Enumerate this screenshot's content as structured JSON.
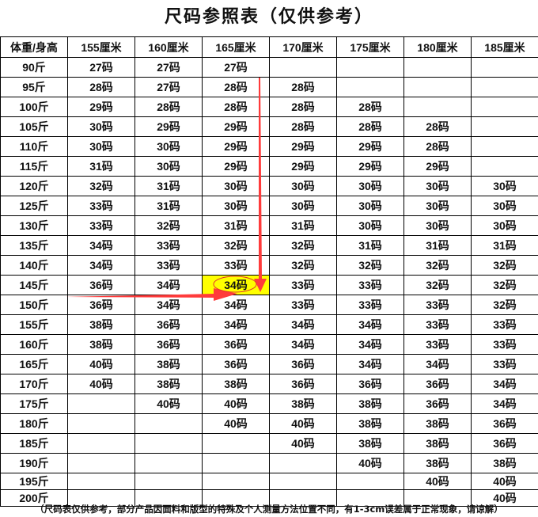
{
  "title": "尺码参照表（仅供参考）",
  "header": [
    "体重/身高",
    "155厘米",
    "160厘米",
    "165厘米",
    "170厘米",
    "175厘米",
    "180厘米",
    "185厘米"
  ],
  "rows": [
    [
      "90斤",
      "27码",
      "27码",
      "27码",
      "",
      "",
      "",
      ""
    ],
    [
      "95斤",
      "28码",
      "27码",
      "28码",
      "28码",
      "",
      "",
      ""
    ],
    [
      "100斤",
      "29码",
      "28码",
      "28码",
      "28码",
      "28码",
      "",
      ""
    ],
    [
      "105斤",
      "30码",
      "29码",
      "29码",
      "28码",
      "28码",
      "28码",
      ""
    ],
    [
      "110斤",
      "30码",
      "30码",
      "29码",
      "29码",
      "29码",
      "28码",
      ""
    ],
    [
      "115斤",
      "31码",
      "30码",
      "29码",
      "29码",
      "29码",
      "29码",
      ""
    ],
    [
      "120斤",
      "32码",
      "31码",
      "30码",
      "30码",
      "30码",
      "30码",
      "30码"
    ],
    [
      "125斤",
      "33码",
      "31码",
      "30码",
      "30码",
      "30码",
      "30码",
      "30码"
    ],
    [
      "130斤",
      "33码",
      "32码",
      "31码",
      "31码",
      "30码",
      "30码",
      "30码"
    ],
    [
      "135斤",
      "34码",
      "33码",
      "32码",
      "32码",
      "31码",
      "31码",
      "31码"
    ],
    [
      "140斤",
      "34码",
      "33码",
      "33码",
      "32码",
      "32码",
      "32码",
      "32码"
    ],
    [
      "145斤",
      "36码",
      "34码",
      "34码",
      "33码",
      "33码",
      "32码",
      "32码"
    ],
    [
      "150斤",
      "36码",
      "34码",
      "34码",
      "33码",
      "33码",
      "33码",
      "32码"
    ],
    [
      "155斤",
      "38码",
      "36码",
      "34码",
      "34码",
      "34码",
      "33码",
      "33码"
    ],
    [
      "160斤",
      "38码",
      "36码",
      "36码",
      "34码",
      "34码",
      "33码",
      "33码"
    ],
    [
      "165斤",
      "40码",
      "38码",
      "36码",
      "36码",
      "34码",
      "34码",
      "33码"
    ],
    [
      "170斤",
      "40码",
      "38码",
      "38码",
      "36码",
      "36码",
      "36码",
      "34码"
    ],
    [
      "175斤",
      "",
      "40码",
      "40码",
      "38码",
      "38码",
      "36码",
      "34码"
    ],
    [
      "180斤",
      "",
      "",
      "40码",
      "40码",
      "38码",
      "38码",
      "36码"
    ],
    [
      "185斤",
      "",
      "",
      "",
      "40码",
      "38码",
      "38码",
      "36码"
    ],
    [
      "190斤",
      "",
      "",
      "",
      "",
      "40码",
      "38码",
      "38码"
    ],
    [
      "195斤",
      "",
      "",
      "",
      "",
      "",
      "40码",
      "40码"
    ],
    [
      "200斤",
      "",
      "",
      "",
      "",
      "",
      "",
      "40码"
    ]
  ],
  "highlight": {
    "row": "145斤",
    "column": "165厘米",
    "color": "#ffff00"
  },
  "arrow_color": "#ff3b3b",
  "note": "（尺码表仅供参考，部分产品因面料和版型的特殊及个人测量方法位置不同，有1-3cm误差属于正常现象，请谅解）"
}
